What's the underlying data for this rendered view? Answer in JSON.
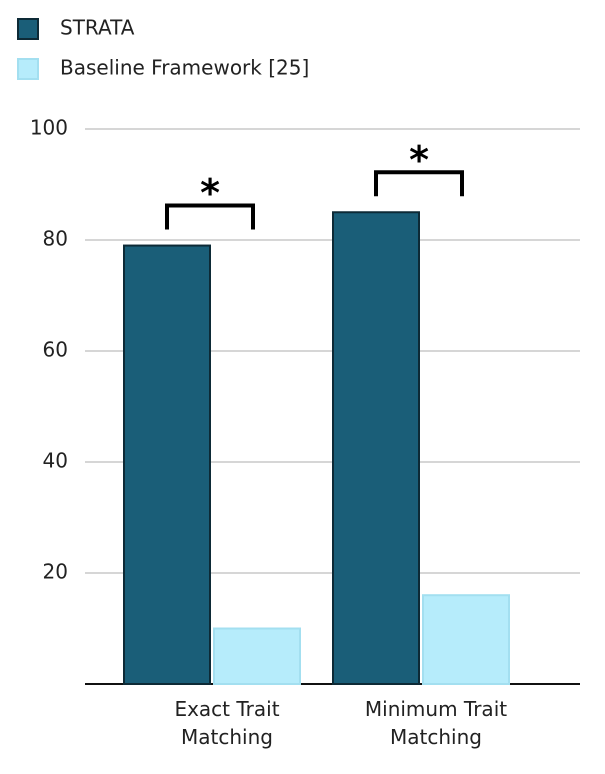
{
  "chart_data": {
    "type": "bar",
    "categories": [
      "Exact Trait Matching",
      "Minimum Trait Matching"
    ],
    "series": [
      {
        "name": "STRATA",
        "color": "#1a5e78",
        "values": [
          79,
          85
        ]
      },
      {
        "name": "Baseline Framework [25]",
        "color": "#b6ecfb",
        "values": [
          10,
          16
        ]
      }
    ],
    "annotations": [
      "*",
      "*"
    ],
    "ylim": [
      0,
      100
    ],
    "yticks": [
      20,
      40,
      60,
      80,
      100
    ],
    "grid": true,
    "legend": "top-left"
  }
}
